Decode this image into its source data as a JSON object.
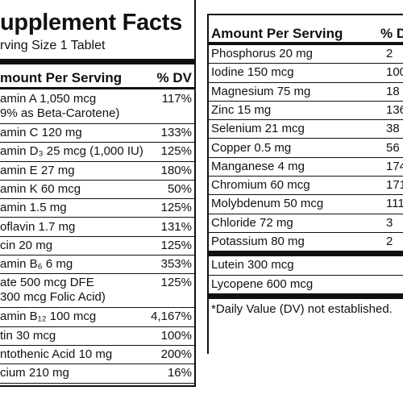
{
  "left": {
    "title": "upplement Facts",
    "serving_size": "rving Size 1 Tablet",
    "header": {
      "amount": "mount Per Serving",
      "dv": "% DV"
    },
    "rows": [
      {
        "name": [
          "amin A 1,050 mcg",
          "9% as Beta-Carotene)"
        ],
        "dv": "117%"
      },
      {
        "name": [
          "amin C 120 mg"
        ],
        "dv": "133%"
      },
      {
        "name": [
          "amin D₃ 25 mcg (1,000 IU)"
        ],
        "dv": "125%"
      },
      {
        "name": [
          "amin E 27 mg"
        ],
        "dv": "180%"
      },
      {
        "name": [
          "amin K 60 mcg"
        ],
        "dv": "50%"
      },
      {
        "name": [
          "amin 1.5 mg"
        ],
        "dv": "125%"
      },
      {
        "name": [
          "oflavin 1.7 mg"
        ],
        "dv": "131%"
      },
      {
        "name": [
          "cin 20 mg"
        ],
        "dv": "125%"
      },
      {
        "name": [
          "amin B₆ 6 mg"
        ],
        "dv": "353%"
      },
      {
        "name": [
          "ate 500 mcg DFE",
          "300 mcg Folic Acid)"
        ],
        "dv": "125%"
      },
      {
        "name": [
          "amin B₁₂ 100 mcg"
        ],
        "dv": "4,167%"
      },
      {
        "name": [
          "tin 30 mcg"
        ],
        "dv": "100%"
      },
      {
        "name": [
          "ntothenic Acid 10 mg"
        ],
        "dv": "200%"
      },
      {
        "name": [
          "cium 210 mg"
        ],
        "dv": "16%"
      }
    ]
  },
  "right": {
    "header": {
      "amount": "Amount Per Serving",
      "dv": "% D"
    },
    "rows": [
      {
        "name": [
          "Phosphorus 20 mg"
        ],
        "dv": "2"
      },
      {
        "name": [
          "Iodine 150 mcg"
        ],
        "dv": "100"
      },
      {
        "name": [
          "Magnesium 75 mg"
        ],
        "dv": "18"
      },
      {
        "name": [
          "Zinc 15 mg"
        ],
        "dv": "136"
      },
      {
        "name": [
          "Selenium 21 mcg"
        ],
        "dv": "38"
      },
      {
        "name": [
          "Copper 0.5 mg"
        ],
        "dv": "56"
      },
      {
        "name": [
          "Manganese 4 mg"
        ],
        "dv": "174"
      },
      {
        "name": [
          "Chromium 60 mcg"
        ],
        "dv": "171"
      },
      {
        "name": [
          "Molybdenum 50 mcg"
        ],
        "dv": "111"
      },
      {
        "name": [
          "Chloride 72 mg"
        ],
        "dv": "3"
      },
      {
        "name": [
          "Potassium 80 mg"
        ],
        "dv": "2"
      }
    ],
    "extra_rows": [
      {
        "name": [
          "Lutein 300 mcg"
        ]
      },
      {
        "name": [
          "Lycopene 600 mcg"
        ]
      }
    ],
    "footnote": "*Daily Value (DV) not established."
  }
}
